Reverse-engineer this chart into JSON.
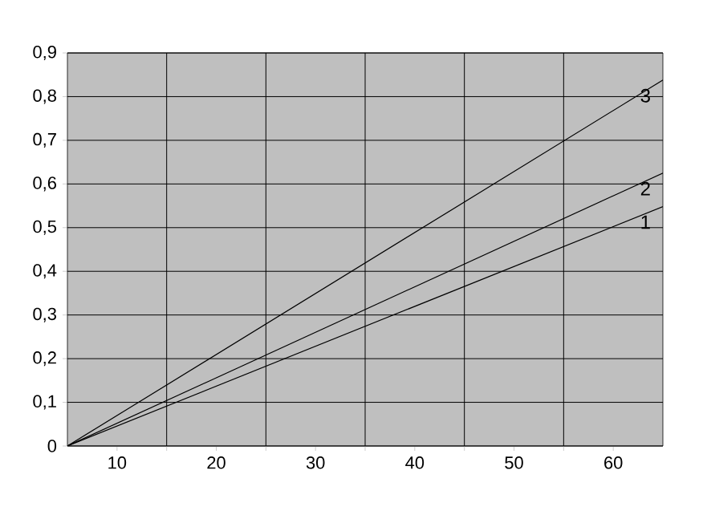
{
  "chart_data": {
    "type": "line",
    "x": [
      5,
      65
    ],
    "series": [
      {
        "name": "1",
        "color": "#000000",
        "values": [
          0,
          0.548
        ]
      },
      {
        "name": "2",
        "color": "#000000",
        "values": [
          0,
          0.625
        ]
      },
      {
        "name": "3",
        "color": "#000000",
        "values": [
          0,
          0.838
        ]
      }
    ],
    "xlim": [
      5,
      65
    ],
    "xticks": [
      {
        "value": 10,
        "label": "10"
      },
      {
        "value": 15,
        "label": null
      },
      {
        "value": 20,
        "label": "20"
      },
      {
        "value": 25,
        "label": null
      },
      {
        "value": 30,
        "label": "30"
      },
      {
        "value": 35,
        "label": null
      },
      {
        "value": 40,
        "label": "40"
      },
      {
        "value": 45,
        "label": null
      },
      {
        "value": 50,
        "label": "50"
      },
      {
        "value": 55,
        "label": null
      },
      {
        "value": 60,
        "label": "60"
      }
    ],
    "ylim": [
      0,
      0.9
    ],
    "yticks": [
      {
        "value": 0,
        "label": "0"
      },
      {
        "value": 0.1,
        "label": "0,1"
      },
      {
        "value": 0.2,
        "label": "0,2"
      },
      {
        "value": 0.3,
        "label": "0,3"
      },
      {
        "value": 0.4,
        "label": "0,4"
      },
      {
        "value": 0.5,
        "label": "0,5"
      },
      {
        "value": 0.6,
        "label": "0,6"
      },
      {
        "value": 0.7,
        "label": "0,7"
      },
      {
        "value": 0.8,
        "label": "0,8"
      },
      {
        "value": 0.9,
        "label": "0,9"
      }
    ],
    "grid": true,
    "legend": false,
    "marker": "none",
    "line_style": "solid"
  }
}
